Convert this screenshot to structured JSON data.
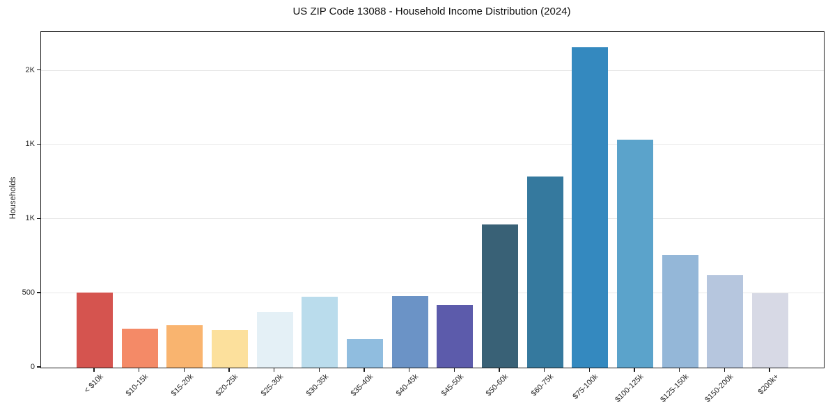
{
  "chart_data": {
    "type": "bar",
    "title": "US ZIP Code 13088 - Household Income Distribution (2024)",
    "xlabel": "",
    "ylabel": "Households",
    "categories": [
      "< $10k",
      "$10-15k",
      "$15-20k",
      "$20-25k",
      "$25-30k",
      "$30-35k",
      "$35-40k",
      "$40-45k",
      "$45-50k",
      "$50-60k",
      "$60-75k",
      "$75-100k",
      "$100-125k",
      "$125-150k",
      "$150-200k",
      "$200k+"
    ],
    "values": [
      505,
      262,
      287,
      252,
      375,
      479,
      190,
      484,
      420,
      966,
      1285,
      2157,
      1537,
      756,
      622,
      500
    ],
    "bar_colors": [
      "#d5544f",
      "#f48a67",
      "#f9b46f",
      "#fce09c",
      "#e4f0f6",
      "#badcec",
      "#90bddf",
      "#6b93c6",
      "#5c5bab",
      "#396176",
      "#35799e",
      "#3489bf",
      "#5ba3cb",
      "#94b7d8",
      "#b6c6de",
      "#d7d9e5"
    ],
    "ylim": [
      0,
      2260
    ],
    "yticks": [
      {
        "value": 0,
        "label": "0"
      },
      {
        "value": 500,
        "label": "500"
      },
      {
        "value": 1000,
        "label": "1K"
      },
      {
        "value": 1500,
        "label": "1K"
      },
      {
        "value": 2000,
        "label": "2K"
      }
    ],
    "grid": "horizontal",
    "legend": "none"
  },
  "colors": {
    "background": "#ffffff",
    "grid": "#e8e8e8",
    "spine": "#1a1a1a",
    "text": "#262626"
  }
}
